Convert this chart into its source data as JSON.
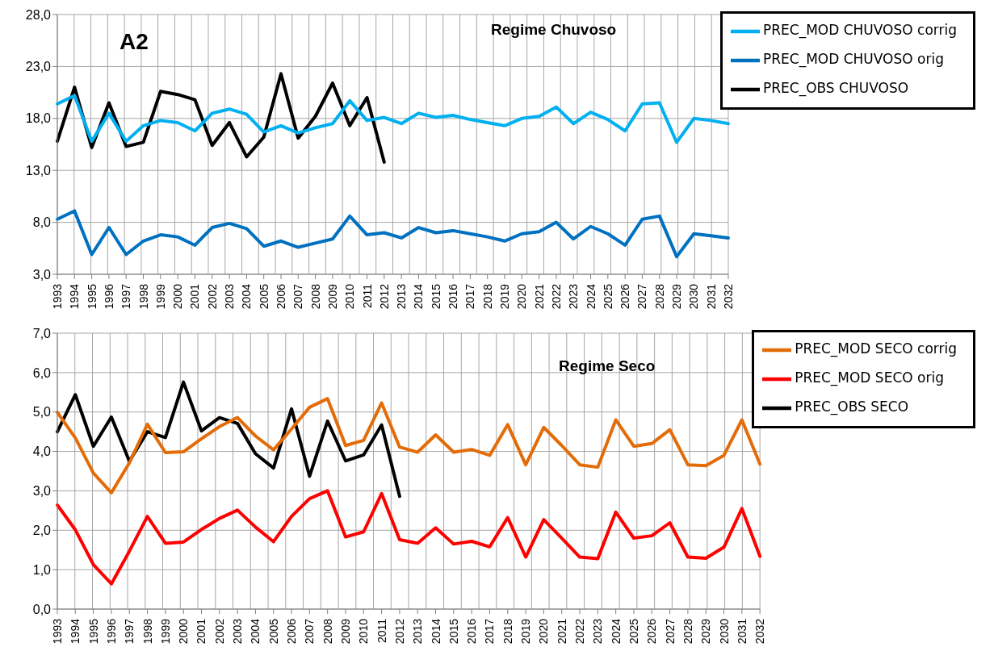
{
  "chart_data": [
    {
      "type": "line",
      "title": "Regime Chuvoso",
      "annotations": [
        "A2"
      ],
      "categories": [
        "1993",
        "1994",
        "1995",
        "1996",
        "1997",
        "1998",
        "1999",
        "2000",
        "2001",
        "2002",
        "2003",
        "2004",
        "2005",
        "2006",
        "2007",
        "2008",
        "2009",
        "2010",
        "2011",
        "2012",
        "2013",
        "2014",
        "2015",
        "2016",
        "2017",
        "2018",
        "2019",
        "2020",
        "2021",
        "2022",
        "2023",
        "2024",
        "2025",
        "2026",
        "2027",
        "2028",
        "2029",
        "2030",
        "2031",
        "2032"
      ],
      "series": [
        {
          "name": "PREC_OBS CHUVOSO",
          "color": "#000000",
          "values": [
            15.8,
            21.0,
            15.2,
            19.5,
            15.3,
            15.7,
            20.6,
            20.3,
            19.8,
            15.4,
            17.6,
            14.3,
            16.2,
            22.3,
            16.1,
            18.2,
            21.4,
            17.3,
            20.0,
            13.8,
            null,
            null,
            null,
            null,
            null,
            null,
            null,
            null,
            null,
            null,
            null,
            null,
            null,
            null,
            null,
            null,
            null,
            null,
            null,
            null
          ]
        },
        {
          "name": "PREC_MOD CHUVOSO orig",
          "color": "#0070c0",
          "values": [
            8.3,
            9.1,
            4.9,
            7.5,
            4.9,
            6.2,
            6.8,
            6.6,
            5.8,
            7.5,
            7.9,
            7.4,
            5.7,
            6.2,
            5.6,
            6.0,
            6.4,
            8.6,
            6.8,
            7.0,
            6.5,
            7.5,
            7.0,
            7.2,
            6.9,
            6.6,
            6.2,
            6.9,
            7.1,
            8.0,
            6.4,
            7.6,
            6.9,
            5.8,
            8.3,
            8.6,
            4.7,
            6.9,
            6.7,
            6.5
          ]
        },
        {
          "name": "PREC_MOD CHUVOSO corrig",
          "color": "#00b0f0",
          "values": [
            19.4,
            20.2,
            15.8,
            18.5,
            15.8,
            17.3,
            17.8,
            17.6,
            16.8,
            18.5,
            18.9,
            18.4,
            16.7,
            17.3,
            16.6,
            17.1,
            17.5,
            19.7,
            17.8,
            18.1,
            17.5,
            18.5,
            18.1,
            18.3,
            17.9,
            17.6,
            17.3,
            18.0,
            18.2,
            19.1,
            17.5,
            18.6,
            17.9,
            16.8,
            19.4,
            19.5,
            15.7,
            18.0,
            17.8,
            17.5
          ]
        }
      ],
      "ylim": [
        3,
        28
      ],
      "yticks": [
        {
          "value": 3,
          "label": "3,0"
        },
        {
          "value": 8,
          "label": "8,0"
        },
        {
          "value": 13,
          "label": "13,0"
        },
        {
          "value": 18,
          "label": "18,0"
        },
        {
          "value": 23,
          "label": "23,0"
        },
        {
          "value": 28,
          "label": "28,0"
        }
      ],
      "grid": true,
      "legend": "top right",
      "marker": "none",
      "line_style": "solid"
    },
    {
      "type": "line",
      "title": "Regime Seco",
      "categories": [
        "1993",
        "1994",
        "1995",
        "1996",
        "1997",
        "1998",
        "1999",
        "2000",
        "2001",
        "2002",
        "2003",
        "2004",
        "2005",
        "2006",
        "2007",
        "2008",
        "2009",
        "2010",
        "2011",
        "2012",
        "2013",
        "2014",
        "2015",
        "2016",
        "2017",
        "2018",
        "2019",
        "2020",
        "2021",
        "2022",
        "2023",
        "2024",
        "2025",
        "2026",
        "2027",
        "2028",
        "2029",
        "2030",
        "2031",
        "2032"
      ],
      "series": [
        {
          "name": "PREC_OBS SECO",
          "color": "#000000",
          "values": [
            4.5,
            5.44,
            4.13,
            4.87,
            3.75,
            4.5,
            4.35,
            5.76,
            4.52,
            4.86,
            4.71,
            3.94,
            3.58,
            5.08,
            3.37,
            4.77,
            3.76,
            3.91,
            4.67,
            2.86,
            null,
            null,
            null,
            null,
            null,
            null,
            null,
            null,
            null,
            null,
            null,
            null,
            null,
            null,
            null,
            null,
            null,
            null,
            null,
            null
          ]
        },
        {
          "name": "PREC_MOD SECO orig",
          "color": "#ff0000",
          "values": [
            2.64,
            2.01,
            1.13,
            0.64,
            1.47,
            2.35,
            1.67,
            1.7,
            2.02,
            2.3,
            2.51,
            2.08,
            1.71,
            2.35,
            2.8,
            3.0,
            1.83,
            1.96,
            2.93,
            1.76,
            1.67,
            2.06,
            1.65,
            1.72,
            1.58,
            2.32,
            1.32,
            2.27,
            1.8,
            1.32,
            1.28,
            2.46,
            1.8,
            1.86,
            2.19,
            1.32,
            1.29,
            1.57,
            2.55,
            1.34
          ]
        },
        {
          "name": "PREC_MOD SECO corrig",
          "color": "#e36c09",
          "values": [
            4.99,
            4.34,
            3.45,
            2.95,
            3.71,
            4.69,
            3.97,
            3.99,
            4.32,
            4.63,
            4.86,
            4.39,
            4.04,
            4.57,
            5.12,
            5.34,
            4.15,
            4.28,
            5.23,
            4.11,
            3.98,
            4.42,
            3.98,
            4.05,
            3.9,
            4.68,
            3.66,
            4.61,
            4.15,
            3.66,
            3.6,
            4.8,
            4.13,
            4.2,
            4.55,
            3.66,
            3.64,
            3.9,
            4.8,
            3.68
          ]
        }
      ],
      "ylim": [
        0,
        7
      ],
      "yticks": [
        {
          "value": 0,
          "label": "0,0"
        },
        {
          "value": 1,
          "label": "1,0"
        },
        {
          "value": 2,
          "label": "2,0"
        },
        {
          "value": 3,
          "label": "3,0"
        },
        {
          "value": 4,
          "label": "4,0"
        },
        {
          "value": 5,
          "label": "5,0"
        },
        {
          "value": 6,
          "label": "6,0"
        },
        {
          "value": 7,
          "label": "7,0"
        }
      ],
      "grid": true,
      "legend": "top right",
      "marker": "none",
      "line_style": "solid"
    }
  ]
}
